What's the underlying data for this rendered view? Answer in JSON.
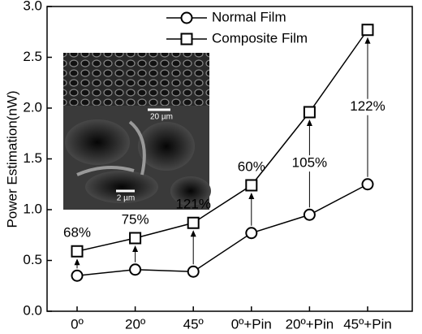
{
  "chart_data": {
    "type": "line",
    "ylabel": "Power Estimation(nW)",
    "categories": [
      "0º",
      "20º",
      "45º",
      "0º+Pin",
      "20º+Pin",
      "45º+Pin"
    ],
    "series": [
      {
        "name": "Normal Film",
        "color": "#000000",
        "marker": "circle",
        "values": [
          0.35,
          0.41,
          0.39,
          0.77,
          0.95,
          1.25
        ]
      },
      {
        "name": "Composite Film",
        "color": "#000000",
        "marker": "square",
        "values": [
          0.59,
          0.72,
          0.87,
          1.24,
          1.96,
          2.77
        ]
      }
    ],
    "annotations": [
      "68%",
      "75%",
      "121%",
      "60%",
      "105%",
      "122%"
    ],
    "inset_labels": [
      "20 µm",
      "2 µm"
    ],
    "ylim": [
      0,
      3
    ],
    "yticks": [
      {
        "value": 0,
        "label": "0.0"
      },
      0.5,
      {
        "value": 1,
        "label": "1.0"
      },
      1.5,
      {
        "value": 2,
        "label": "2.0"
      },
      2.5,
      {
        "value": 3,
        "label": "3.0"
      }
    ],
    "legend": "upper center"
  }
}
